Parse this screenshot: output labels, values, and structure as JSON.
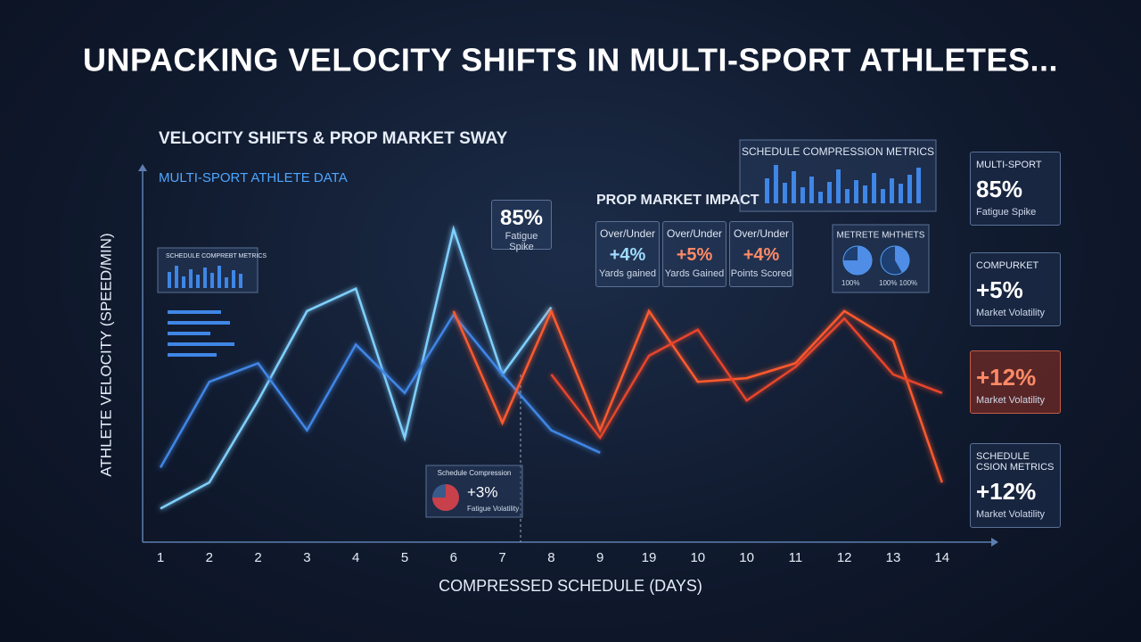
{
  "header": {
    "title": "UNPACKING VELOCITY SHIFTS IN MULTI-SPORT ATHLETES..."
  },
  "chart_data": {
    "type": "line",
    "title": "VELOCITY SHIFTS & PROP MARKET SWAY",
    "subtitle": "MULTI-SPORT ATHLETE DATA",
    "y_label": "ATHLETE VELOCITY (SPEED/MIN)",
    "x_label": "COMPRESSED SCHEDULE (DAYS)",
    "categories": [
      "1",
      "2",
      "2",
      "3",
      "4",
      "5",
      "6",
      "7",
      "8",
      "9",
      "19",
      "10",
      "10",
      "11",
      "12",
      "13",
      "14"
    ],
    "ylim": [
      0,
      100
    ],
    "series": [
      {
        "color": "#7fd0ff",
        "values": [
          9,
          16,
          38,
          62,
          68,
          28,
          84,
          45,
          63,
          null,
          null,
          null,
          null,
          null,
          null,
          null,
          null
        ]
      },
      {
        "color": "#3f86e6",
        "values": [
          20,
          43,
          48,
          30,
          53,
          40,
          61,
          45,
          30,
          24,
          null,
          null,
          null,
          null,
          null,
          null,
          null
        ]
      },
      {
        "color": "#ff5a2e",
        "values": [
          null,
          null,
          null,
          null,
          null,
          null,
          62,
          32,
          62,
          30,
          62,
          43,
          44,
          48,
          62,
          54,
          16
        ]
      },
      {
        "color": "#e8442a",
        "values": [
          null,
          null,
          null,
          null,
          null,
          null,
          null,
          null,
          45,
          28,
          50,
          57,
          38,
          47,
          60,
          45,
          40
        ]
      }
    ]
  },
  "panels": {
    "fatigue": {
      "value": "85%",
      "label": "Fatigue Spike"
    },
    "prop_market": {
      "title": "PROP MARKET IMPACT",
      "cards": [
        {
          "head": "Over/Under",
          "value": "+4%",
          "label": "Yards gained"
        },
        {
          "head": "Over/Under",
          "value": "+5%",
          "label": "Yards Gained"
        },
        {
          "head": "Over/Under",
          "value": "+4%",
          "label": "Points Scored"
        }
      ]
    },
    "compression_metrics": {
      "title": "SCHEDULE COMPRESSION METRICS"
    },
    "left_metrics": {
      "title": "SCHEDULE COMPREBT METRICS"
    },
    "pie_metrics": {
      "title": "METRETE MHTHETS",
      "labels": [
        "100%",
        "100% 100%"
      ]
    },
    "compression": {
      "title": "Schedule Compression",
      "value": "+3%",
      "label": "Fatigue Volatility"
    },
    "side": [
      {
        "head": "MULTI-SPORT",
        "value": "85%",
        "label": "Fatigue Spike"
      },
      {
        "head": "COMPURKET",
        "value": "+5%",
        "label": "Market Volatility"
      },
      {
        "value": "+12%",
        "label": "Market Volatility"
      },
      {
        "head": "SCHEDULE CSION METRICS",
        "value": "+12%",
        "label": "Market Volatility"
      }
    ]
  }
}
